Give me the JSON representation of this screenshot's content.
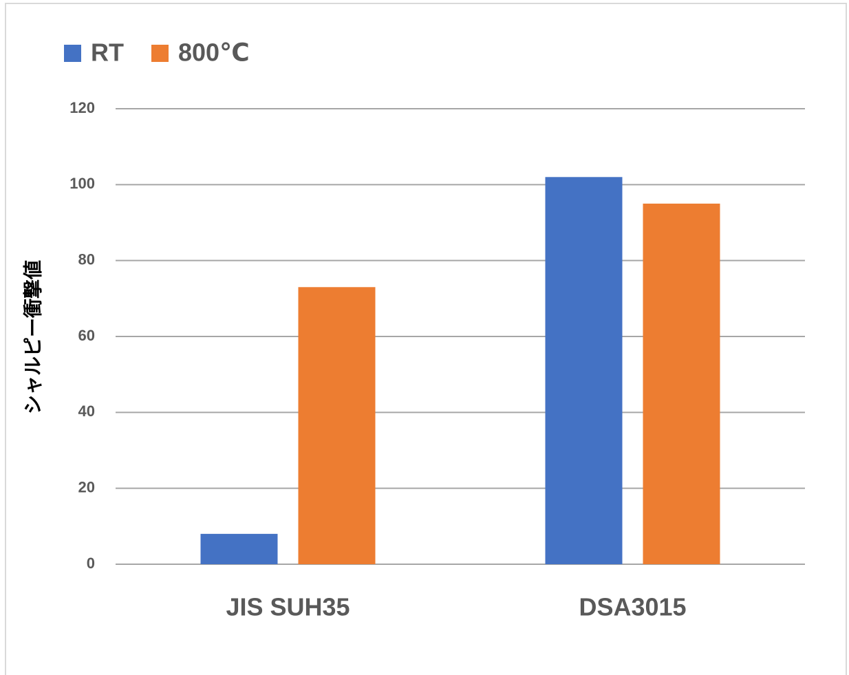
{
  "chart_data": {
    "type": "bar",
    "y_label": "シャルピー衝撃値",
    "categories": [
      "JIS SUH35",
      "DSA3015"
    ],
    "series": [
      {
        "name": "RT",
        "color": "#4472c4",
        "values": [
          8,
          102
        ]
      },
      {
        "name": "800℃",
        "color": "#ed7d31",
        "values": [
          73,
          95
        ]
      }
    ],
    "ylim": [
      0,
      120
    ],
    "yticks": [
      0,
      20,
      40,
      60,
      80,
      100,
      120
    ],
    "grid": true,
    "legend": "top-left"
  }
}
